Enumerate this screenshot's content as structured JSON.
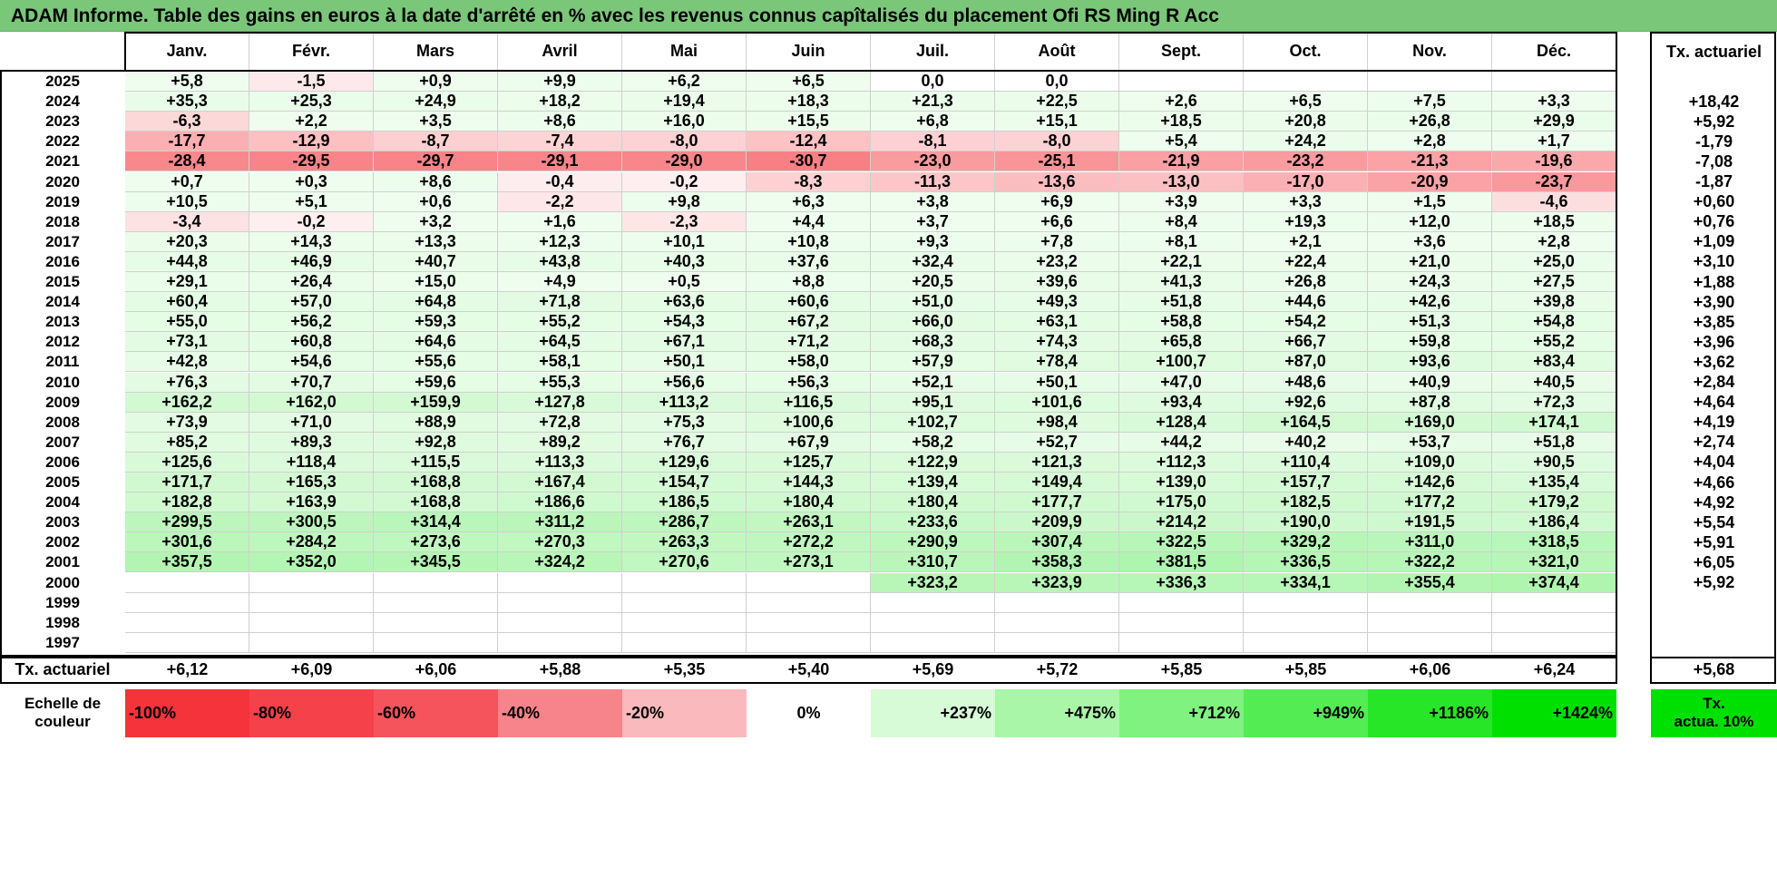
{
  "title": "ADAM Informe. Table des gains en euros à la date d'arrêté en % avec les revenus connus capîtalisés du placement Ofi RS Ming R Acc",
  "months": [
    "Janv.",
    "Févr.",
    "Mars",
    "Avril",
    "Mai",
    "Juin",
    "Juil.",
    "Août",
    "Sept.",
    "Oct.",
    "Nov.",
    "Déc."
  ],
  "rate_header": "Tx. actuariel",
  "rows": [
    {
      "year": "2025",
      "values": [
        "+5,8",
        "-1,5",
        "+0,9",
        "+9,9",
        "+6,2",
        "+6,5",
        "0,0",
        "0,0",
        "",
        "",
        "",
        ""
      ],
      "rate": ""
    },
    {
      "year": "2024",
      "values": [
        "+35,3",
        "+25,3",
        "+24,9",
        "+18,2",
        "+19,4",
        "+18,3",
        "+21,3",
        "+22,5",
        "+2,6",
        "+6,5",
        "+7,5",
        "+3,3"
      ],
      "rate": "+18,42"
    },
    {
      "year": "2023",
      "values": [
        "-6,3",
        "+2,2",
        "+3,5",
        "+8,6",
        "+16,0",
        "+15,5",
        "+6,8",
        "+15,1",
        "+18,5",
        "+20,8",
        "+26,8",
        "+29,9"
      ],
      "rate": "+5,92"
    },
    {
      "year": "2022",
      "values": [
        "-17,7",
        "-12,9",
        "-8,7",
        "-7,4",
        "-8,0",
        "-12,4",
        "-8,1",
        "-8,0",
        "+5,4",
        "+24,2",
        "+2,8",
        "+1,7"
      ],
      "rate": "-1,79"
    },
    {
      "year": "2021",
      "values": [
        "-28,4",
        "-29,5",
        "-29,7",
        "-29,1",
        "-29,0",
        "-30,7",
        "-23,0",
        "-25,1",
        "-21,9",
        "-23,2",
        "-21,3",
        "-19,6"
      ],
      "rate": "-7,08"
    },
    {
      "year": "2020",
      "values": [
        "+0,7",
        "+0,3",
        "+8,6",
        "-0,4",
        "-0,2",
        "-8,3",
        "-11,3",
        "-13,6",
        "-13,0",
        "-17,0",
        "-20,9",
        "-23,7"
      ],
      "rate": "-1,87"
    },
    {
      "year": "2019",
      "values": [
        "+10,5",
        "+5,1",
        "+0,6",
        "-2,2",
        "+9,8",
        "+6,3",
        "+3,8",
        "+6,9",
        "+3,9",
        "+3,3",
        "+1,5",
        "-4,6"
      ],
      "rate": "+0,60"
    },
    {
      "year": "2018",
      "values": [
        "-3,4",
        "-0,2",
        "+3,2",
        "+1,6",
        "-2,3",
        "+4,4",
        "+3,7",
        "+6,6",
        "+8,4",
        "+19,3",
        "+12,0",
        "+18,5"
      ],
      "rate": "+0,76"
    },
    {
      "year": "2017",
      "values": [
        "+20,3",
        "+14,3",
        "+13,3",
        "+12,3",
        "+10,1",
        "+10,8",
        "+9,3",
        "+7,8",
        "+8,1",
        "+2,1",
        "+3,6",
        "+2,8"
      ],
      "rate": "+1,09"
    },
    {
      "year": "2016",
      "values": [
        "+44,8",
        "+46,9",
        "+40,7",
        "+43,8",
        "+40,3",
        "+37,6",
        "+32,4",
        "+23,2",
        "+22,1",
        "+22,4",
        "+21,0",
        "+25,0"
      ],
      "rate": "+3,10"
    },
    {
      "year": "2015",
      "values": [
        "+29,1",
        "+26,4",
        "+15,0",
        "+4,9",
        "+0,5",
        "+8,8",
        "+20,5",
        "+39,6",
        "+41,3",
        "+26,8",
        "+24,3",
        "+27,5"
      ],
      "rate": "+1,88"
    },
    {
      "year": "2014",
      "values": [
        "+60,4",
        "+57,0",
        "+64,8",
        "+71,8",
        "+63,6",
        "+60,6",
        "+51,0",
        "+49,3",
        "+51,8",
        "+44,6",
        "+42,6",
        "+39,8"
      ],
      "rate": "+3,90"
    },
    {
      "year": "2013",
      "values": [
        "+55,0",
        "+56,2",
        "+59,3",
        "+55,2",
        "+54,3",
        "+67,2",
        "+66,0",
        "+63,1",
        "+58,8",
        "+54,2",
        "+51,3",
        "+54,8"
      ],
      "rate": "+3,85"
    },
    {
      "year": "2012",
      "values": [
        "+73,1",
        "+60,8",
        "+64,6",
        "+64,5",
        "+67,1",
        "+71,2",
        "+68,3",
        "+74,3",
        "+65,8",
        "+66,7",
        "+59,8",
        "+55,2"
      ],
      "rate": "+3,96"
    },
    {
      "year": "2011",
      "values": [
        "+42,8",
        "+54,6",
        "+55,6",
        "+58,1",
        "+50,1",
        "+58,0",
        "+57,9",
        "+78,4",
        "+100,7",
        "+87,0",
        "+93,6",
        "+83,4"
      ],
      "rate": "+3,62"
    },
    {
      "year": "2010",
      "values": [
        "+76,3",
        "+70,7",
        "+59,6",
        "+55,3",
        "+56,6",
        "+56,3",
        "+52,1",
        "+50,1",
        "+47,0",
        "+48,6",
        "+40,9",
        "+40,5"
      ],
      "rate": "+2,84"
    },
    {
      "year": "2009",
      "values": [
        "+162,2",
        "+162,0",
        "+159,9",
        "+127,8",
        "+113,2",
        "+116,5",
        "+95,1",
        "+101,6",
        "+93,4",
        "+92,6",
        "+87,8",
        "+72,3"
      ],
      "rate": "+4,64"
    },
    {
      "year": "2008",
      "values": [
        "+73,9",
        "+71,0",
        "+88,9",
        "+72,8",
        "+75,3",
        "+100,6",
        "+102,7",
        "+98,4",
        "+128,4",
        "+164,5",
        "+169,0",
        "+174,1"
      ],
      "rate": "+4,19"
    },
    {
      "year": "2007",
      "values": [
        "+85,2",
        "+89,3",
        "+92,8",
        "+89,2",
        "+76,7",
        "+67,9",
        "+58,2",
        "+52,7",
        "+44,2",
        "+40,2",
        "+53,7",
        "+51,8"
      ],
      "rate": "+2,74"
    },
    {
      "year": "2006",
      "values": [
        "+125,6",
        "+118,4",
        "+115,5",
        "+113,3",
        "+129,6",
        "+125,7",
        "+122,9",
        "+121,3",
        "+112,3",
        "+110,4",
        "+109,0",
        "+90,5"
      ],
      "rate": "+4,04"
    },
    {
      "year": "2005",
      "values": [
        "+171,7",
        "+165,3",
        "+168,8",
        "+167,4",
        "+154,7",
        "+144,3",
        "+139,4",
        "+149,4",
        "+139,0",
        "+157,7",
        "+142,6",
        "+135,4"
      ],
      "rate": "+4,66"
    },
    {
      "year": "2004",
      "values": [
        "+182,8",
        "+163,9",
        "+168,8",
        "+186,6",
        "+186,5",
        "+180,4",
        "+180,4",
        "+177,7",
        "+175,0",
        "+182,5",
        "+177,2",
        "+179,2"
      ],
      "rate": "+4,92"
    },
    {
      "year": "2003",
      "values": [
        "+299,5",
        "+300,5",
        "+314,4",
        "+311,2",
        "+286,7",
        "+263,1",
        "+233,6",
        "+209,9",
        "+214,2",
        "+190,0",
        "+191,5",
        "+186,4"
      ],
      "rate": "+5,54"
    },
    {
      "year": "2002",
      "values": [
        "+301,6",
        "+284,2",
        "+273,6",
        "+270,3",
        "+263,3",
        "+272,2",
        "+290,9",
        "+307,4",
        "+322,5",
        "+329,2",
        "+311,0",
        "+318,5"
      ],
      "rate": "+5,91"
    },
    {
      "year": "2001",
      "values": [
        "+357,5",
        "+352,0",
        "+345,5",
        "+324,2",
        "+270,6",
        "+273,1",
        "+310,7",
        "+358,3",
        "+381,5",
        "+336,5",
        "+322,2",
        "+321,0"
      ],
      "rate": "+6,05"
    },
    {
      "year": "2000",
      "values": [
        "",
        "",
        "",
        "",
        "",
        "",
        "+323,2",
        "+323,9",
        "+336,3",
        "+334,1",
        "+355,4",
        "+374,4"
      ],
      "rate": "+5,92"
    },
    {
      "year": "1999",
      "values": [
        "",
        "",
        "",
        "",
        "",
        "",
        "",
        "",
        "",
        "",
        "",
        ""
      ],
      "rate": ""
    },
    {
      "year": "1998",
      "values": [
        "",
        "",
        "",
        "",
        "",
        "",
        "",
        "",
        "",
        "",
        "",
        ""
      ],
      "rate": ""
    },
    {
      "year": "1997",
      "values": [
        "",
        "",
        "",
        "",
        "",
        "",
        "",
        "",
        "",
        "",
        "",
        ""
      ],
      "rate": ""
    }
  ],
  "footer": {
    "label": "Tx. actuariel",
    "values": [
      "+6,12",
      "+6,09",
      "+6,06",
      "+5,88",
      "+5,35",
      "+5,40",
      "+5,69",
      "+5,72",
      "+5,85",
      "+5,85",
      "+6,06",
      "+6,24"
    ],
    "rate": "+5,68"
  },
  "legend": {
    "label_line1": "Echelle de",
    "label_line2": "couleur",
    "items": [
      {
        "text": "-100%",
        "color": "#f4333b"
      },
      {
        "text": "-80%",
        "color": "#f5414a"
      },
      {
        "text": "-60%",
        "color": "#f5545c"
      },
      {
        "text": "-40%",
        "color": "#f7848a"
      },
      {
        "text": "-20%",
        "color": "#fab9bc"
      },
      {
        "text": "0%",
        "color": "#ffffff"
      },
      {
        "text": "+237%",
        "color": "#d7fbd7"
      },
      {
        "text": "+475%",
        "color": "#a9f6a9"
      },
      {
        "text": "+712%",
        "color": "#7ff27f"
      },
      {
        "text": "+949%",
        "color": "#53ec53"
      },
      {
        "text": "+1186%",
        "color": "#27e527"
      },
      {
        "text": "+1424%",
        "color": "#00e000"
      }
    ],
    "rate_line1": "Tx.",
    "rate_line2": "actua. 10%",
    "rate_color": "#00e000"
  },
  "colors": {
    "title_bg": "#7ac77a",
    "negative_max": "#f4333b",
    "positive_max": "#00e000"
  }
}
